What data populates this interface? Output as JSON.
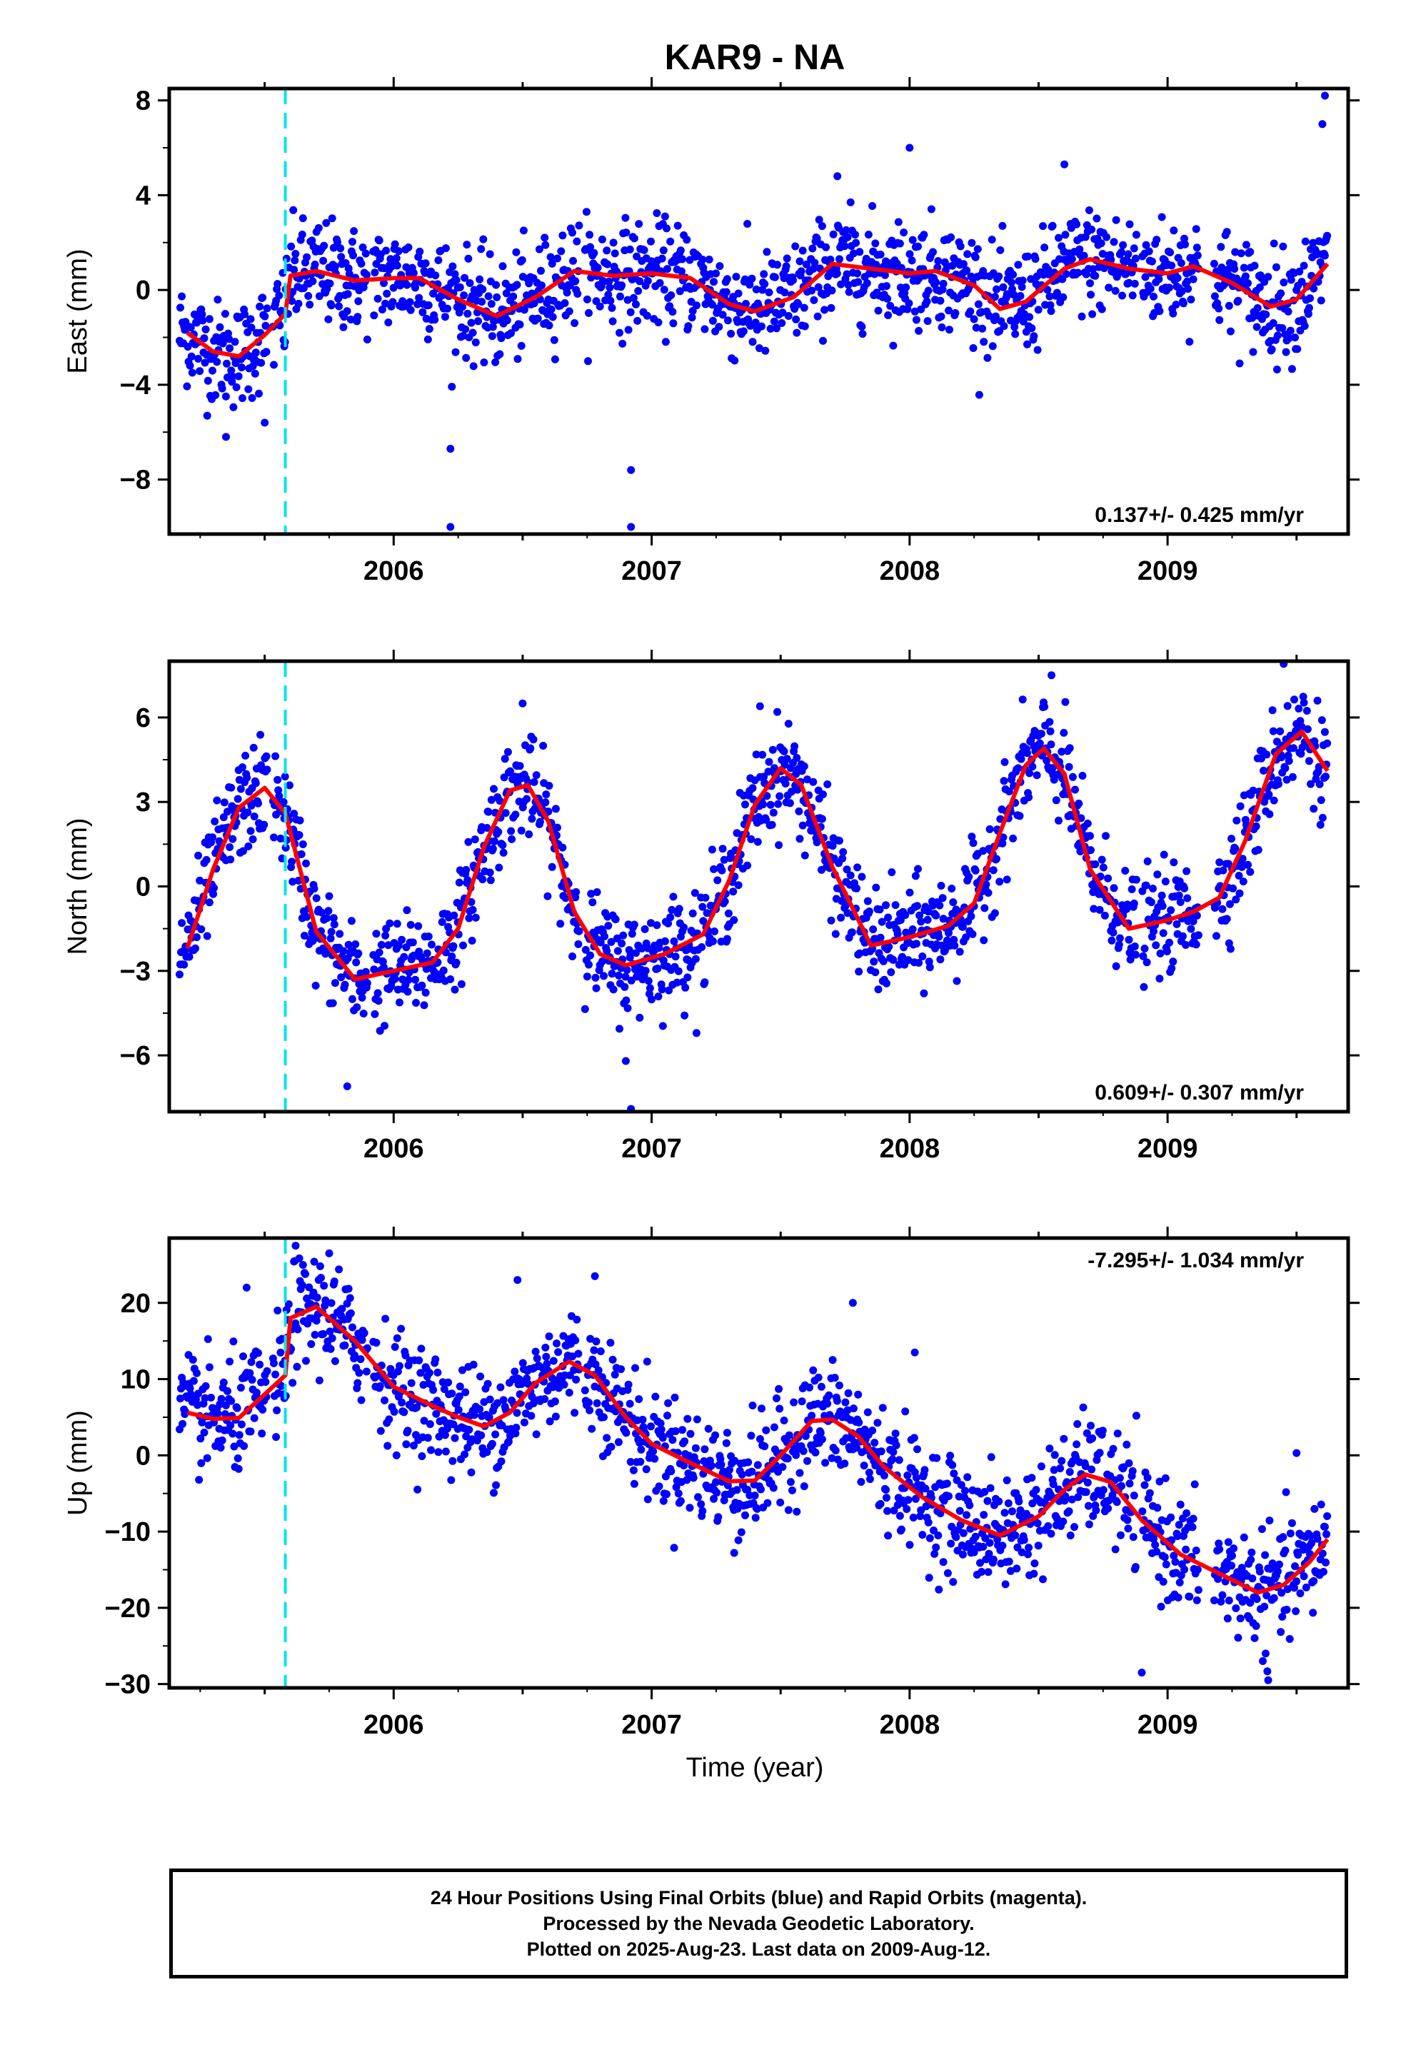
{
  "title": "KAR9 - NA",
  "xlabel": "Time (year)",
  "caption": [
    "24 Hour Positions Using Final Orbits (blue) and Rapid Orbits (magenta).",
    "Processed by the Nevada Geodetic Laboratory.",
    "Plotted on 2025-Aug-23. Last data on 2009-Aug-12."
  ],
  "colors": {
    "points": "#0000ff",
    "model": "#ff0000",
    "event_line": "#00e5ee"
  },
  "chart_data": [
    {
      "type": "scatter",
      "ylabel": "East (mm)",
      "rate_text": "0.137+/- 0.425 mm/yr",
      "xlim": [
        2005.13,
        2009.7
      ],
      "ylim": [
        -10.3,
        8.5
      ],
      "yticks": [
        8,
        4,
        0,
        -4,
        -8
      ],
      "xticks": [
        "2006",
        "2007",
        "2008",
        "2009"
      ],
      "event_line_x": 2005.58,
      "model": [
        [
          2005.2,
          -1.8
        ],
        [
          2005.3,
          -2.6
        ],
        [
          2005.4,
          -2.8
        ],
        [
          2005.5,
          -1.9
        ],
        [
          2005.58,
          -1.0
        ],
        [
          2005.6,
          0.6
        ],
        [
          2005.7,
          0.8
        ],
        [
          2005.85,
          0.4
        ],
        [
          2006.0,
          0.5
        ],
        [
          2006.1,
          0.5
        ],
        [
          2006.25,
          -0.4
        ],
        [
          2006.4,
          -1.1
        ],
        [
          2006.55,
          -0.3
        ],
        [
          2006.7,
          0.8
        ],
        [
          2006.85,
          0.6
        ],
        [
          2007.0,
          0.7
        ],
        [
          2007.15,
          0.5
        ],
        [
          2007.3,
          -0.6
        ],
        [
          2007.4,
          -0.9
        ],
        [
          2007.55,
          -0.3
        ],
        [
          2007.7,
          1.1
        ],
        [
          2007.85,
          0.9
        ],
        [
          2008.0,
          0.7
        ],
        [
          2008.1,
          0.8
        ],
        [
          2008.25,
          0.2
        ],
        [
          2008.35,
          -0.8
        ],
        [
          2008.45,
          -0.5
        ],
        [
          2008.6,
          0.9
        ],
        [
          2008.7,
          1.3
        ],
        [
          2008.85,
          0.9
        ],
        [
          2009.0,
          0.7
        ],
        [
          2009.1,
          1.0
        ],
        [
          2009.25,
          0.3
        ],
        [
          2009.4,
          -0.7
        ],
        [
          2009.5,
          -0.4
        ],
        [
          2009.62,
          1.1
        ]
      ],
      "outliers": [
        [
          2006.22,
          -6.7
        ],
        [
          2006.22,
          -10.0
        ],
        [
          2006.92,
          -7.6
        ],
        [
          2006.92,
          -10.0
        ],
        [
          2005.35,
          -6.2
        ],
        [
          2005.5,
          -5.6
        ],
        [
          2009.61,
          8.2
        ],
        [
          2009.6,
          7.0
        ],
        [
          2008.6,
          5.3
        ],
        [
          2008.0,
          6.0
        ],
        [
          2007.72,
          4.8
        ]
      ],
      "noise": 1.1
    },
    {
      "type": "scatter",
      "ylabel": "North (mm)",
      "rate_text": "0.609+/- 0.307 mm/yr",
      "xlim": [
        2005.13,
        2009.7
      ],
      "ylim": [
        -8.0,
        8.0
      ],
      "yticks": [
        6,
        3,
        0,
        -3,
        -6
      ],
      "xticks": [
        "2006",
        "2007",
        "2008",
        "2009"
      ],
      "event_line_x": 2005.58,
      "model": [
        [
          2005.2,
          -2.2
        ],
        [
          2005.3,
          0.6
        ],
        [
          2005.4,
          2.8
        ],
        [
          2005.5,
          3.5
        ],
        [
          2005.58,
          2.6
        ],
        [
          2005.7,
          -1.6
        ],
        [
          2005.85,
          -3.3
        ],
        [
          2006.0,
          -3.0
        ],
        [
          2006.15,
          -2.7
        ],
        [
          2006.25,
          -1.5
        ],
        [
          2006.35,
          1.4
        ],
        [
          2006.45,
          3.4
        ],
        [
          2006.52,
          3.6
        ],
        [
          2006.6,
          2.3
        ],
        [
          2006.7,
          -0.9
        ],
        [
          2006.8,
          -2.4
        ],
        [
          2006.9,
          -2.8
        ],
        [
          2007.05,
          -2.4
        ],
        [
          2007.2,
          -1.7
        ],
        [
          2007.3,
          0.2
        ],
        [
          2007.4,
          2.9
        ],
        [
          2007.5,
          4.2
        ],
        [
          2007.58,
          3.6
        ],
        [
          2007.7,
          0.7
        ],
        [
          2007.85,
          -2.1
        ],
        [
          2008.0,
          -1.8
        ],
        [
          2008.15,
          -1.4
        ],
        [
          2008.25,
          -0.6
        ],
        [
          2008.35,
          1.9
        ],
        [
          2008.45,
          4.3
        ],
        [
          2008.52,
          4.9
        ],
        [
          2008.6,
          4.0
        ],
        [
          2008.7,
          0.6
        ],
        [
          2008.85,
          -1.5
        ],
        [
          2009.0,
          -1.2
        ],
        [
          2009.1,
          -0.9
        ],
        [
          2009.2,
          -0.4
        ],
        [
          2009.3,
          1.6
        ],
        [
          2009.42,
          4.7
        ],
        [
          2009.52,
          5.5
        ],
        [
          2009.62,
          4.1
        ]
      ],
      "outliers": [
        [
          2006.92,
          -7.9
        ],
        [
          2005.82,
          -7.1
        ],
        [
          2008.55,
          7.5
        ],
        [
          2009.45,
          7.9
        ],
        [
          2006.5,
          6.5
        ],
        [
          2007.42,
          6.4
        ],
        [
          2006.9,
          -6.2
        ]
      ],
      "noise": 0.9
    },
    {
      "type": "scatter",
      "ylabel": "Up (mm)",
      "rate_text": "-7.295+/- 1.034 mm/yr",
      "xlim": [
        2005.13,
        2009.7
      ],
      "ylim": [
        -30.5,
        28.5
      ],
      "yticks": [
        20,
        10,
        0,
        -10,
        -20,
        -30
      ],
      "xticks": [
        "2006",
        "2007",
        "2008",
        "2009"
      ],
      "event_line_x": 2005.58,
      "model": [
        [
          2005.2,
          5.6
        ],
        [
          2005.3,
          4.8
        ],
        [
          2005.4,
          4.9
        ],
        [
          2005.5,
          8.0
        ],
        [
          2005.58,
          10.5
        ],
        [
          2005.6,
          18.0
        ],
        [
          2005.7,
          19.5
        ],
        [
          2005.85,
          15.0
        ],
        [
          2006.0,
          9.0
        ],
        [
          2006.15,
          6.5
        ],
        [
          2006.25,
          5.0
        ],
        [
          2006.35,
          3.8
        ],
        [
          2006.45,
          5.6
        ],
        [
          2006.55,
          9.5
        ],
        [
          2006.68,
          12.3
        ],
        [
          2006.78,
          10.5
        ],
        [
          2006.9,
          5.0
        ],
        [
          2007.0,
          1.5
        ],
        [
          2007.15,
          -1.0
        ],
        [
          2007.3,
          -3.4
        ],
        [
          2007.4,
          -3.3
        ],
        [
          2007.5,
          0.0
        ],
        [
          2007.62,
          4.5
        ],
        [
          2007.7,
          4.7
        ],
        [
          2007.8,
          2.5
        ],
        [
          2007.9,
          -1.5
        ],
        [
          2008.05,
          -5.5
        ],
        [
          2008.2,
          -8.5
        ],
        [
          2008.35,
          -10.5
        ],
        [
          2008.5,
          -8.0
        ],
        [
          2008.6,
          -4.5
        ],
        [
          2008.68,
          -2.5
        ],
        [
          2008.78,
          -3.5
        ],
        [
          2008.9,
          -8.5
        ],
        [
          2009.05,
          -13.0
        ],
        [
          2009.2,
          -15.5
        ],
        [
          2009.35,
          -18.0
        ],
        [
          2009.45,
          -17.0
        ],
        [
          2009.55,
          -14.0
        ],
        [
          2009.62,
          -11.0
        ]
      ],
      "outliers": [
        [
          2005.62,
          27.5
        ],
        [
          2005.75,
          26.5
        ],
        [
          2006.78,
          23.5
        ],
        [
          2006.48,
          23.0
        ],
        [
          2005.43,
          22.0
        ],
        [
          2008.9,
          -28.5
        ],
        [
          2009.39,
          -29.5
        ],
        [
          2009.38,
          -26.0
        ],
        [
          2007.32,
          -12.8
        ],
        [
          2008.02,
          13.5
        ],
        [
          2007.78,
          20.0
        ],
        [
          2009.5,
          0.3
        ]
      ],
      "noise": 3.6
    }
  ]
}
